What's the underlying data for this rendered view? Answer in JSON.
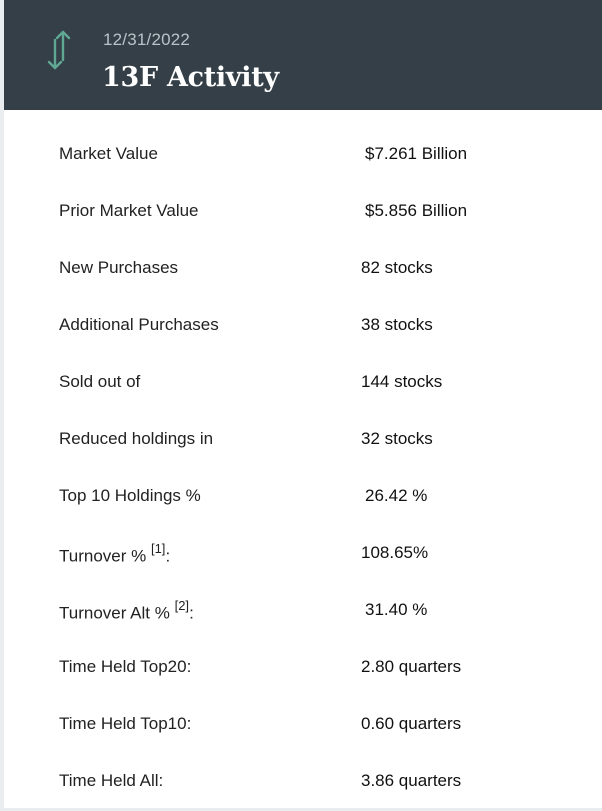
{
  "header": {
    "date": "12/31/2022",
    "title": "13F Activity",
    "icon": "up-down-arrows-icon",
    "icon_color": "#5fa893",
    "background": "#343f47"
  },
  "rows": [
    {
      "label": "Market Value",
      "note": "",
      "suffix": "",
      "value": "$7.261 Billion"
    },
    {
      "label": "Prior Market Value",
      "note": "",
      "suffix": "",
      "value": "$5.856 Billion"
    },
    {
      "label": "New Purchases",
      "note": "",
      "suffix": "",
      "value": "82 stocks"
    },
    {
      "label": "Additional Purchases",
      "note": "",
      "suffix": "",
      "value": "38 stocks"
    },
    {
      "label": "Sold out of",
      "note": "",
      "suffix": "",
      "value": "144 stocks"
    },
    {
      "label": "Reduced holdings in",
      "note": "",
      "suffix": "",
      "value": "32 stocks"
    },
    {
      "label": "Top 10 Holdings %",
      "note": "",
      "suffix": "",
      "value": "26.42 %"
    },
    {
      "label": "Turnover % ",
      "note": "[1]",
      "suffix": ":",
      "value": "108.65%"
    },
    {
      "label": "Turnover Alt % ",
      "note": "[2]",
      "suffix": ":",
      "value": "31.40 %"
    },
    {
      "label": "Time Held Top20:",
      "note": "",
      "suffix": "",
      "value": "2.80 quarters"
    },
    {
      "label": "Time Held Top10:",
      "note": "",
      "suffix": "",
      "value": "0.60 quarters"
    },
    {
      "label": "Time Held All:",
      "note": "",
      "suffix": "",
      "value": "3.86 quarters"
    }
  ]
}
